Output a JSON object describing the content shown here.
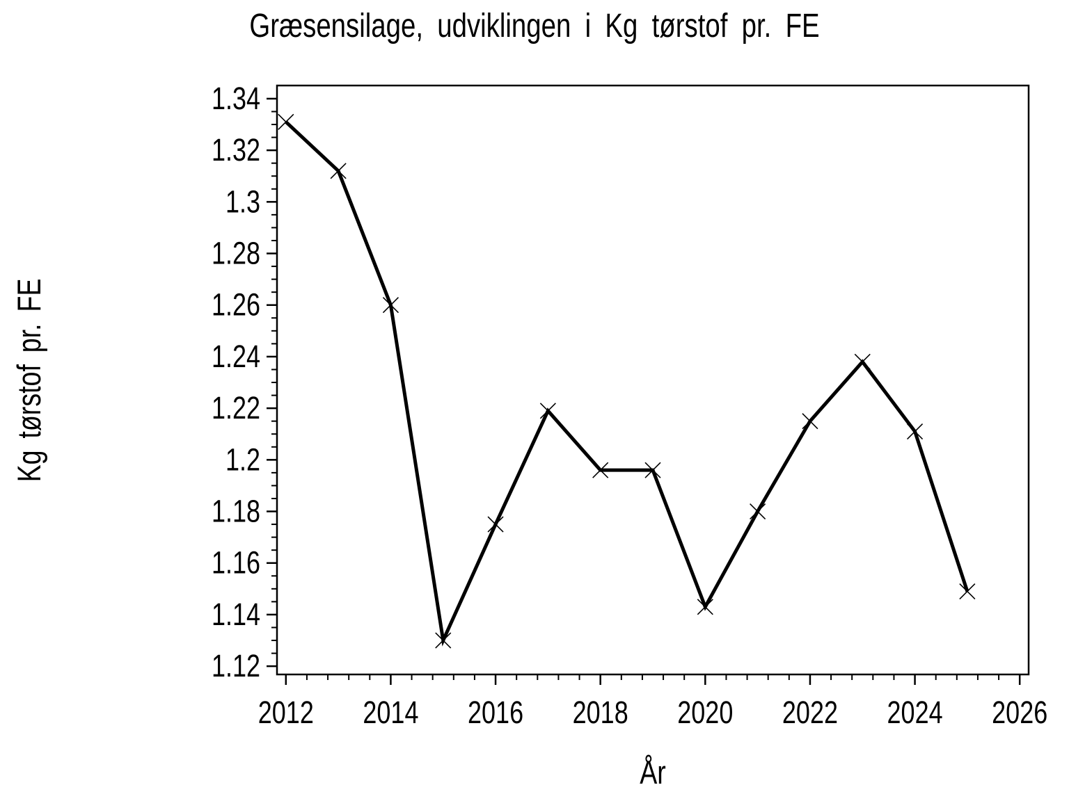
{
  "figure": {
    "background_color": "#ffffff",
    "foreground_color": "#000000"
  },
  "chart_data": {
    "type": "line",
    "title": "Græsensilage, udviklingen i Kg tørstof pr. FE",
    "xlabel": "År",
    "ylabel": "Kg tørstof pr. FE",
    "x": [
      2012,
      2013,
      2014,
      2015,
      2016,
      2017,
      2018,
      2019,
      2020,
      2021,
      2022,
      2023,
      2024,
      2025
    ],
    "values": [
      1.331,
      1.312,
      1.26,
      1.13,
      1.175,
      1.219,
      1.196,
      1.196,
      1.143,
      1.18,
      1.215,
      1.238,
      1.211,
      1.149
    ],
    "series": [
      {
        "name": "Kg tørstof pr. FE",
        "values": [
          1.331,
          1.312,
          1.26,
          1.13,
          1.175,
          1.219,
          1.196,
          1.196,
          1.143,
          1.18,
          1.215,
          1.238,
          1.211,
          1.149
        ]
      }
    ],
    "xlim": [
      2011.83,
      2026.17
    ],
    "ylim": [
      1.1168,
      1.3451
    ],
    "x_major_ticks": [
      2012,
      2014,
      2016,
      2018,
      2020,
      2022,
      2024,
      2026
    ],
    "x_tick_labels": [
      "2012",
      "2014",
      "2016",
      "2018",
      "2020",
      "2022",
      "2024",
      "2026"
    ],
    "x_minor_step": 0.4,
    "y_major_ticks": [
      1.12,
      1.14,
      1.16,
      1.18,
      1.2,
      1.22,
      1.24,
      1.26,
      1.28,
      1.3,
      1.32,
      1.34
    ],
    "y_tick_labels": [
      "1.12",
      "1.14",
      "1.16",
      "1.18",
      "1.2",
      "1.22",
      "1.24",
      "1.26",
      "1.28",
      "1.3",
      "1.32",
      "1.34"
    ],
    "y_minor_step": 0.005,
    "grid": false,
    "legend": false,
    "marker": "x",
    "line_color": "#000000",
    "line_width": 5,
    "frame": true
  }
}
